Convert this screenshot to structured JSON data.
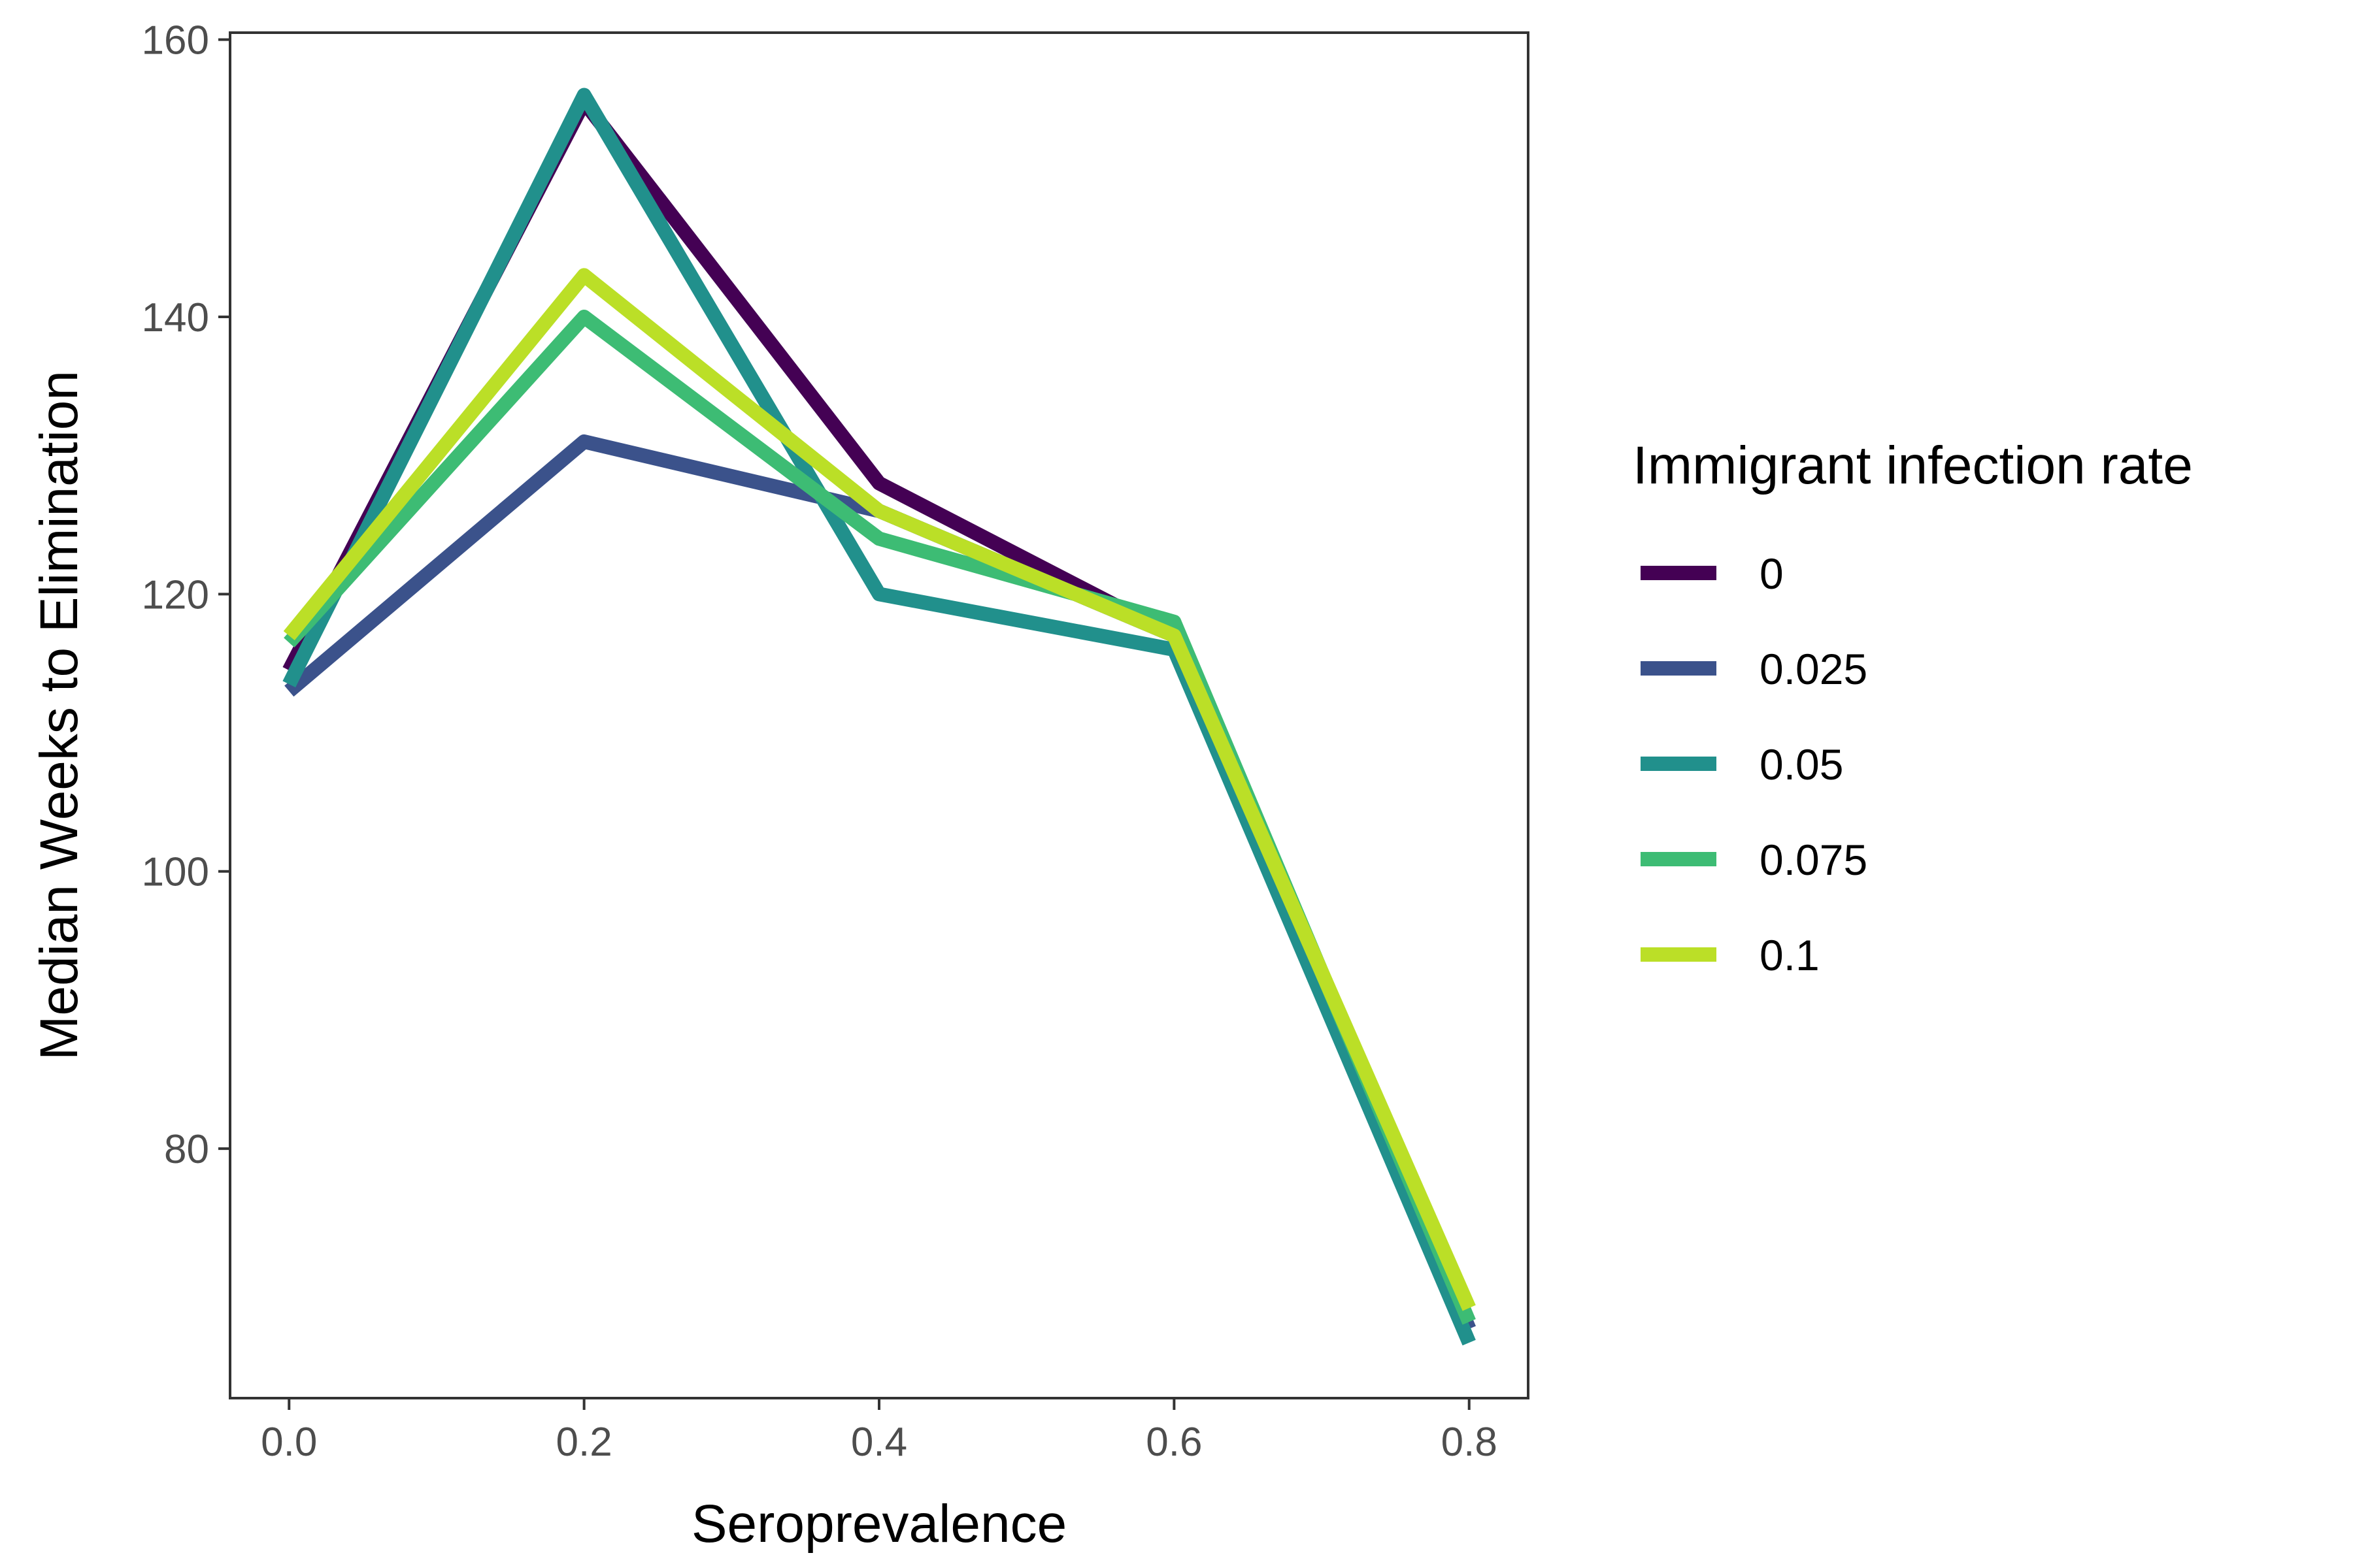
{
  "chart_data": {
    "type": "line",
    "xlabel": "Seroprevalence",
    "ylabel": "Median Weeks to Elimination",
    "xlim": [
      -0.04,
      0.84
    ],
    "ylim": [
      62,
      160.5
    ],
    "x_ticks": [
      0.0,
      0.2,
      0.4,
      0.6,
      0.8
    ],
    "x_tick_labels": [
      "0.0",
      "0.2",
      "0.4",
      "0.6",
      "0.8"
    ],
    "y_ticks": [
      80,
      100,
      120,
      140,
      160
    ],
    "y_tick_labels": [
      "80",
      "100",
      "120",
      "140",
      "160"
    ],
    "grid": false,
    "legend": {
      "title": "Immigrant infection rate",
      "placement": "right"
    },
    "x": [
      0.0,
      0.2,
      0.4,
      0.6,
      0.8
    ],
    "series": [
      {
        "name": "0",
        "color": "#440154",
        "values": [
          114.5,
          155.5,
          128,
          117,
          67
        ]
      },
      {
        "name": "0.025",
        "color": "#3B528B",
        "values": [
          113,
          131,
          126,
          117,
          67
        ]
      },
      {
        "name": "0.05",
        "color": "#21908C",
        "values": [
          113.5,
          156,
          120,
          116,
          66
        ]
      },
      {
        "name": "0.075",
        "color": "#3DBC74",
        "values": [
          116.5,
          140,
          124,
          118,
          67.5
        ]
      },
      {
        "name": "0.1",
        "color": "#BBDF27",
        "values": [
          117,
          143,
          126,
          117,
          68.5
        ]
      }
    ]
  }
}
